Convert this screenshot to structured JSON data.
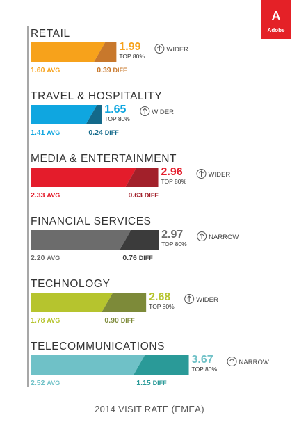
{
  "brand": {
    "name": "Adobe",
    "mark": "A"
  },
  "footer": "2014 VISIT RATE (EMEA)",
  "chart_data": {
    "type": "bar",
    "title": "2014 VISIT RATE (EMEA)",
    "top_label": "TOP 80%",
    "avg_suffix": "AVG",
    "diff_suffix": "DIFF",
    "xlim": [
      0,
      3.67
    ],
    "categories": [
      {
        "name": "RETAIL",
        "avg": 1.6,
        "top80": 1.99,
        "diff": 0.39,
        "trend": "WIDER",
        "color": "#f7a21b",
        "dark": "#c8782c"
      },
      {
        "name": "TRAVEL & HOSPITALITY",
        "avg": 1.41,
        "top80": 1.65,
        "diff": 0.24,
        "trend": "WIDER",
        "color": "#0fa6e0",
        "dark": "#13698a"
      },
      {
        "name": "MEDIA & ENTERTAINMENT",
        "avg": 2.33,
        "top80": 2.96,
        "diff": 0.63,
        "trend": "WIDER",
        "color": "#e41c2b",
        "dark": "#a2202a"
      },
      {
        "name": "FINANCIAL SERVICES",
        "avg": 2.2,
        "top80": 2.97,
        "diff": 0.76,
        "trend": "NARROW",
        "color": "#6c6c6c",
        "dark": "#3b3b3b"
      },
      {
        "name": "TECHNOLOGY",
        "avg": 1.78,
        "top80": 2.68,
        "diff": 0.9,
        "trend": "WIDER",
        "color": "#b6c42e",
        "dark": "#7d8a39"
      },
      {
        "name": "TELECOMMUNICATIONS",
        "avg": 2.52,
        "top80": 3.67,
        "diff": 1.15,
        "trend": "NARROW",
        "color": "#6fc1c7",
        "dark": "#2a9a98"
      }
    ]
  }
}
